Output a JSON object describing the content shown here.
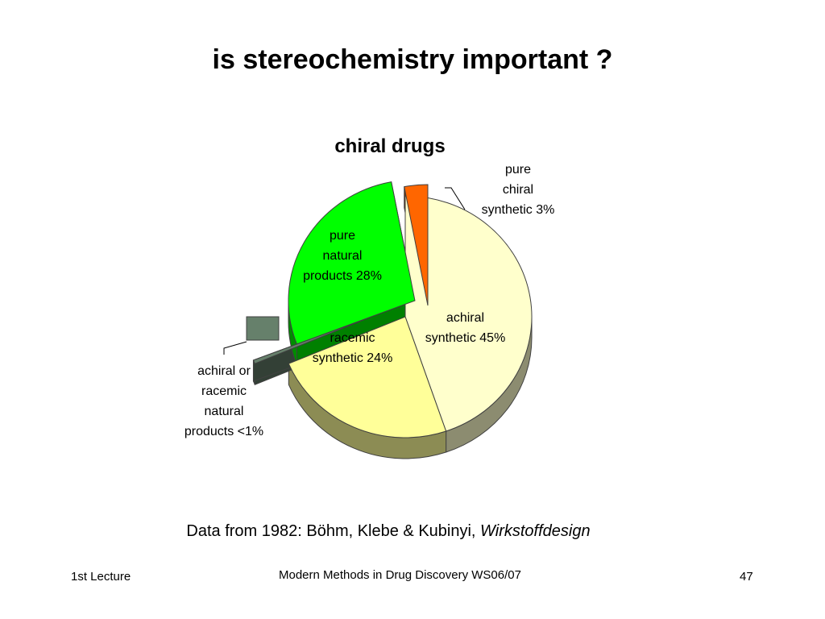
{
  "slide": {
    "title": "is stereochemistry important ?",
    "source_prefix": "Data from 1982: Böhm, Klebe & Kubinyi,",
    "source_italic": "Wirkstoffdesign"
  },
  "footer": {
    "left": "1st Lecture",
    "center": "Modern Methods in Drug Discovery WS06/07",
    "page": "47"
  },
  "chart_data": {
    "type": "pie",
    "title": "chiral drugs",
    "style": "3d-exploded",
    "slices": [
      {
        "label": "achiral\nsynthetic 45%",
        "value": 45,
        "color": "#ffffcc",
        "exploded": false
      },
      {
        "label": "racemic\nsynthetic 24%",
        "value": 24,
        "color": "#ffff99",
        "exploded": false
      },
      {
        "label": "achiral or\nracemic\nnatural\nproducts <1%",
        "value": 0.5,
        "color": "#66806b",
        "exploded": false
      },
      {
        "label": "pure\nnatural\nproducts 28%",
        "value": 28,
        "color": "#00ff00",
        "exploded": true
      },
      {
        "label": "pure\nchiral\nsynthetic 3%",
        "value": 3,
        "color": "#ff6600",
        "exploded": true
      }
    ]
  }
}
